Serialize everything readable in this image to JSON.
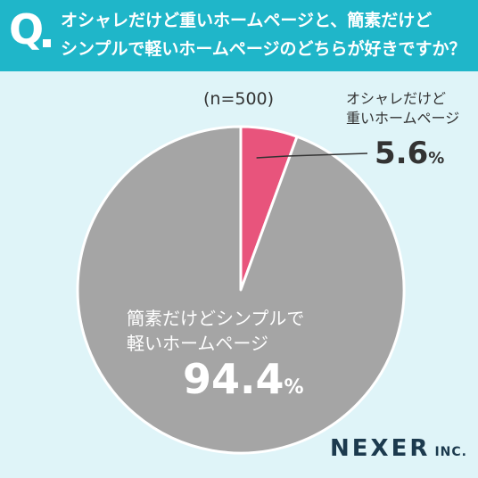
{
  "header": {
    "q_mark": "Q",
    "question_line1": "オシャレだけど重いホームページと、簡素だけど",
    "question_line2": "シンプルで軽いホームページのどちらが好きですか？"
  },
  "brand": {
    "name": "NEXER",
    "suffix": "INC."
  },
  "chart_data": {
    "type": "pie",
    "title": "",
    "sample": "(n=500)",
    "unit": "%",
    "slices": [
      {
        "label_line1": "オシャレだけど",
        "label_line2": "重いホームページ",
        "value": 5.6,
        "display": "5.6",
        "color": "#e8547c"
      },
      {
        "label_line1": "簡素だけどシンプルで",
        "label_line2": "軽いホームページ",
        "value": 94.4,
        "display": "94.4",
        "color": "#a5a5a5"
      }
    ]
  }
}
